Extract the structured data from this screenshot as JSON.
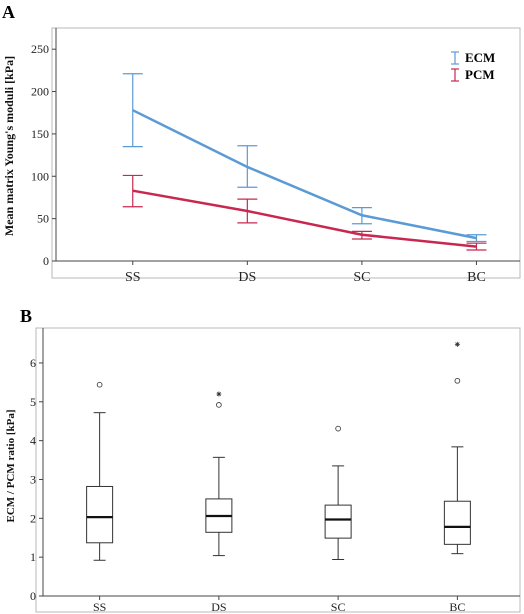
{
  "chart_data": [
    {
      "panel": "A",
      "type": "line",
      "categories": [
        "SS",
        "DS",
        "SC",
        "BC"
      ],
      "ylabel": "Mean matrix Young's moduli [kPa]",
      "ylim": [
        0,
        275
      ],
      "yticks": [
        "0",
        "50",
        "100",
        "150",
        "200",
        "250"
      ],
      "legend_position": "top-right",
      "grid": false,
      "series": [
        {
          "name": "ECM",
          "color": "#5b9bd5",
          "values": [
            178,
            111,
            54,
            27
          ],
          "error_low": [
            135,
            87,
            44,
            23
          ],
          "error_high": [
            221,
            136,
            63,
            31
          ]
        },
        {
          "name": "PCM",
          "color": "#c8284f",
          "values": [
            83,
            59,
            31,
            17
          ],
          "error_low": [
            64,
            45,
            26,
            13
          ],
          "error_high": [
            101,
            73,
            35,
            21
          ]
        }
      ]
    },
    {
      "panel": "B",
      "type": "box",
      "categories": [
        "SS",
        "DS",
        "SC",
        "BC"
      ],
      "ylabel": "ECM / PCM ratio [kPa]",
      "ylim": [
        0,
        6.9
      ],
      "yticks": [
        "0",
        "1",
        "2",
        "3",
        "4",
        "5",
        "6"
      ],
      "grid": false,
      "boxes": [
        {
          "min": 0.92,
          "q1": 1.37,
          "median": 2.03,
          "q3": 2.82,
          "max": 4.72,
          "outliers": [
            5.44
          ],
          "extremes": []
        },
        {
          "min": 1.04,
          "q1": 1.64,
          "median": 2.06,
          "q3": 2.5,
          "max": 3.57,
          "outliers": [
            4.92
          ],
          "extremes": [
            5.2
          ]
        },
        {
          "min": 0.94,
          "q1": 1.49,
          "median": 1.97,
          "q3": 2.34,
          "max": 3.35,
          "outliers": [
            4.31
          ],
          "extremes": []
        },
        {
          "min": 1.09,
          "q1": 1.33,
          "median": 1.78,
          "q3": 2.44,
          "max": 3.84,
          "outliers": [
            5.54
          ],
          "extremes": [
            6.48
          ]
        }
      ]
    }
  ]
}
